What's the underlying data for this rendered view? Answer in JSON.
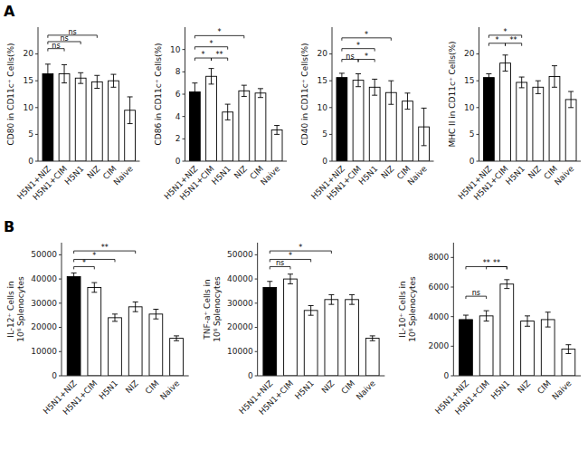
{
  "chart_data": [
    {
      "type": "bar",
      "title": "A",
      "ylabel": "CD80 in CD11c⁺ Cells(%)",
      "categories": [
        "H5N1+NIZ",
        "H5N1+CIM",
        "H5N1",
        "NIZ",
        "CIM",
        "Naive"
      ],
      "values": [
        16.3,
        16.3,
        15.5,
        14.8,
        15.0,
        9.5
      ],
      "errors": [
        1.8,
        1.7,
        1.0,
        1.2,
        1.2,
        2.5
      ],
      "colors": [
        "black",
        "white",
        "white",
        "white",
        "white",
        "white"
      ],
      "ylim": [
        0,
        25
      ],
      "yticks": [
        0,
        5,
        10,
        15,
        20
      ],
      "grid": false,
      "annotations": [
        {
          "text": "ns",
          "bars": [
            0,
            1
          ],
          "y": 20.5
        },
        {
          "text": "ns",
          "bars": [
            0,
            2
          ],
          "y": 21.8
        },
        {
          "text": "ns",
          "bars": [
            0,
            3
          ],
          "y": 23.0
        }
      ]
    },
    {
      "type": "bar",
      "ylabel": "CD86 in CD11c⁺ Cells(%)",
      "categories": [
        "H5N1+NIZ",
        "H5N1+CIM",
        "H5N1",
        "NIZ",
        "CIM",
        "Naive"
      ],
      "values": [
        6.2,
        7.6,
        4.4,
        6.3,
        6.1,
        2.8
      ],
      "errors": [
        0.8,
        0.7,
        0.7,
        0.5,
        0.4,
        0.4
      ],
      "colors": [
        "black",
        "white",
        "white",
        "white",
        "white",
        "white"
      ],
      "ylim": [
        0,
        12
      ],
      "yticks": [
        0,
        2,
        4,
        6,
        8,
        10
      ],
      "grid": false,
      "annotations": [
        {
          "text": "*",
          "bars": [
            0,
            1
          ],
          "y": 9.0
        },
        {
          "text": "*",
          "bars": [
            0,
            2
          ],
          "y": 10.0
        },
        {
          "text": "**",
          "bars": [
            1,
            2
          ],
          "y": 9.0
        },
        {
          "text": "*",
          "bars": [
            0,
            3
          ],
          "y": 11.0
        }
      ]
    },
    {
      "type": "bar",
      "ylabel": "CD40 in CD11c⁺ Cells(%)",
      "categories": [
        "H5N1+NIZ",
        "H5N1+CIM",
        "H5N1",
        "NIZ",
        "CIM",
        "Naive"
      ],
      "values": [
        15.6,
        15.1,
        13.8,
        12.8,
        11.2,
        6.4
      ],
      "errors": [
        0.8,
        1.2,
        1.5,
        2.2,
        1.5,
        3.5
      ],
      "colors": [
        "black",
        "white",
        "white",
        "white",
        "white",
        "white"
      ],
      "ylim": [
        0,
        25
      ],
      "yticks": [
        0,
        5,
        10,
        15,
        20
      ],
      "grid": false,
      "annotations": [
        {
          "text": "ns",
          "bars": [
            0,
            1
          ],
          "y": 18.5
        },
        {
          "text": "*",
          "bars": [
            1,
            2
          ],
          "y": 18.5
        },
        {
          "text": "*",
          "bars": [
            0,
            2
          ],
          "y": 20.5
        },
        {
          "text": "*",
          "bars": [
            0,
            3
          ],
          "y": 22.5
        }
      ]
    },
    {
      "type": "bar",
      "ylabel": "MHC II in CD11c⁺ Cells(%)",
      "categories": [
        "H5N1+NIZ",
        "H5N1+CIM",
        "H5N1",
        "NIZ",
        "CIM",
        "Naive"
      ],
      "values": [
        15.6,
        18.3,
        14.7,
        13.8,
        15.8,
        11.5
      ],
      "errors": [
        0.7,
        1.5,
        1.0,
        1.2,
        2.0,
        1.5
      ],
      "colors": [
        "black",
        "white",
        "white",
        "white",
        "white",
        "white"
      ],
      "ylim": [
        0,
        25
      ],
      "yticks": [
        0,
        5,
        10,
        15,
        20
      ],
      "grid": false,
      "annotations": [
        {
          "text": "*",
          "bars": [
            0,
            1
          ],
          "y": 21.5
        },
        {
          "text": "*",
          "bars": [
            0,
            2
          ],
          "y": 23.0
        },
        {
          "text": "**",
          "bars": [
            1,
            2
          ],
          "y": 21.5
        }
      ]
    },
    {
      "type": "bar",
      "title": "B",
      "ylabel": "IL-12⁺ Cells in\n10⁶ Splenocytes",
      "categories": [
        "H5N1+NIZ",
        "H5N1+CIM",
        "H5N1",
        "NIZ",
        "CIM",
        "Naive"
      ],
      "values": [
        41000,
        36500,
        24000,
        28500,
        25500,
        15500
      ],
      "errors": [
        1500,
        2000,
        1500,
        2000,
        2000,
        1000
      ],
      "colors": [
        "black",
        "white",
        "white",
        "white",
        "white",
        "white"
      ],
      "ylim": [
        0,
        55000
      ],
      "yticks": [
        0,
        10000,
        20000,
        30000,
        40000,
        50000
      ],
      "grid": false,
      "annotations": [
        {
          "text": "*",
          "bars": [
            0,
            1
          ],
          "y": 44000
        },
        {
          "text": "*",
          "bars": [
            0,
            2
          ],
          "y": 47000
        },
        {
          "text": "**",
          "bars": [
            0,
            3
          ],
          "y": 50500
        }
      ]
    },
    {
      "type": "bar",
      "ylabel": "TNF-a⁺ Cells in\n10⁶ Splenocytes",
      "categories": [
        "H5N1+NIZ",
        "H5N1+CIM",
        "H5N1",
        "NIZ",
        "CIM",
        "Naive"
      ],
      "values": [
        36500,
        40000,
        27000,
        31500,
        31500,
        15500
      ],
      "errors": [
        2500,
        2000,
        2000,
        2000,
        2000,
        1000
      ],
      "colors": [
        "black",
        "white",
        "white",
        "white",
        "white",
        "white"
      ],
      "ylim": [
        0,
        55000
      ],
      "yticks": [
        0,
        10000,
        20000,
        30000,
        40000,
        50000
      ],
      "grid": false,
      "annotations": [
        {
          "text": "ns",
          "bars": [
            0,
            1
          ],
          "y": 44000
        },
        {
          "text": "*",
          "bars": [
            0,
            2
          ],
          "y": 47000
        },
        {
          "text": "*",
          "bars": [
            0,
            3
          ],
          "y": 50500
        }
      ]
    },
    {
      "type": "bar",
      "ylabel": "IL-10⁺ Cells in\n10⁶ Splenocytes",
      "categories": [
        "H5N1+NIZ",
        "H5N1+CIM",
        "H5N1",
        "NIZ",
        "CIM",
        "Naive"
      ],
      "values": [
        3800,
        4050,
        6200,
        3700,
        3800,
        1800
      ],
      "errors": [
        300,
        350,
        300,
        350,
        500,
        300
      ],
      "colors": [
        "black",
        "white",
        "white",
        "white",
        "white",
        "white"
      ],
      "ylim": [
        0,
        9000
      ],
      "yticks": [
        0,
        2000,
        4000,
        6000,
        8000
      ],
      "grid": false,
      "annotations": [
        {
          "text": "ns",
          "bars": [
            0,
            1
          ],
          "y": 5200
        },
        {
          "text": "**",
          "bars": [
            0,
            2
          ],
          "y": 7200
        },
        {
          "text": "**",
          "bars": [
            1,
            2
          ],
          "y": 7200
        }
      ]
    }
  ]
}
